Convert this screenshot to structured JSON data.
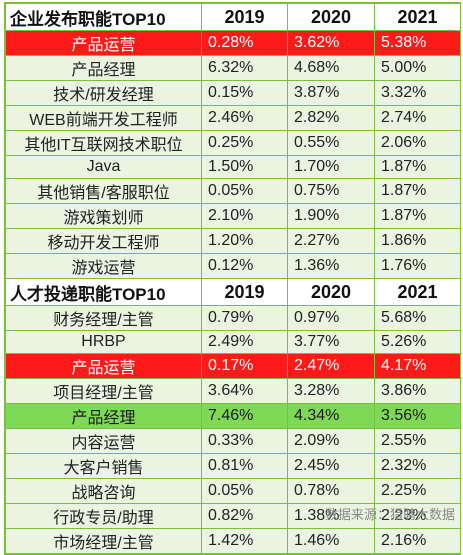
{
  "table1": {
    "title": "企业发布职能TOP10",
    "years": [
      "2019",
      "2020",
      "2021"
    ],
    "rows": [
      {
        "label": "产品运营",
        "values": [
          "0.28%",
          "3.62%",
          "5.38%"
        ],
        "highlight": "red"
      },
      {
        "label": "产品经理",
        "values": [
          "6.32%",
          "4.68%",
          "5.00%"
        ],
        "highlight": ""
      },
      {
        "label": "技术/研发经理",
        "values": [
          "0.15%",
          "3.87%",
          "3.32%"
        ],
        "highlight": ""
      },
      {
        "label": "WEB前端开发工程师",
        "values": [
          "2.46%",
          "2.82%",
          "2.74%"
        ],
        "highlight": ""
      },
      {
        "label": "其他IT互联网技术职位",
        "values": [
          "0.25%",
          "0.55%",
          "2.06%"
        ],
        "highlight": ""
      },
      {
        "label": "Java",
        "values": [
          "1.50%",
          "1.70%",
          "1.87%"
        ],
        "highlight": ""
      },
      {
        "label": "其他销售/客服职位",
        "values": [
          "0.05%",
          "0.75%",
          "1.87%"
        ],
        "highlight": ""
      },
      {
        "label": "游戏策划师",
        "values": [
          "2.10%",
          "1.90%",
          "1.87%"
        ],
        "highlight": ""
      },
      {
        "label": "移动开发工程师",
        "values": [
          "1.20%",
          "2.27%",
          "1.86%"
        ],
        "highlight": ""
      },
      {
        "label": "游戏运营",
        "values": [
          "0.12%",
          "1.36%",
          "1.76%"
        ],
        "highlight": ""
      }
    ]
  },
  "table2": {
    "title": "人才投递职能TOP10",
    "years": [
      "2019",
      "2020",
      "2021"
    ],
    "rows": [
      {
        "label": "财务经理/主管",
        "values": [
          "0.79%",
          "0.97%",
          "5.68%"
        ],
        "highlight": ""
      },
      {
        "label": "HRBP",
        "values": [
          "2.49%",
          "3.77%",
          "5.26%"
        ],
        "highlight": ""
      },
      {
        "label": "产品运营",
        "values": [
          "0.17%",
          "2.47%",
          "4.17%"
        ],
        "highlight": "red"
      },
      {
        "label": "项目经理/主管",
        "values": [
          "3.64%",
          "3.28%",
          "3.86%"
        ],
        "highlight": ""
      },
      {
        "label": "产品经理",
        "values": [
          "7.46%",
          "4.34%",
          "3.56%"
        ],
        "highlight": "green"
      },
      {
        "label": "内容运营",
        "values": [
          "0.33%",
          "2.09%",
          "2.55%"
        ],
        "highlight": ""
      },
      {
        "label": "大客户销售",
        "values": [
          "0.81%",
          "2.45%",
          "2.32%"
        ],
        "highlight": ""
      },
      {
        "label": "战略咨询",
        "values": [
          "0.05%",
          "0.78%",
          "2.25%"
        ],
        "highlight": ""
      },
      {
        "label": "行政专员/助理",
        "values": [
          "0.82%",
          "1.38%",
          "2.23%"
        ],
        "highlight": ""
      },
      {
        "label": "市场经理/主管",
        "values": [
          "1.42%",
          "1.46%",
          "2.16%"
        ],
        "highlight": ""
      }
    ]
  },
  "source": "数据来源：猎聘大数据"
}
